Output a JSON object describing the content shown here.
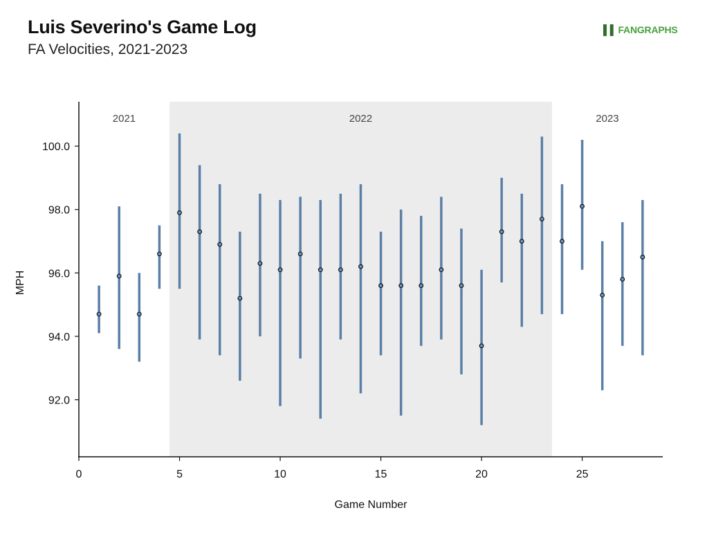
{
  "header": {
    "title": "Luis Severino's Game Log",
    "subtitle": "FA Velocities, 2021-2023",
    "logo_text": "FANGRAPHS"
  },
  "chart_data": {
    "type": "scatter",
    "title": "Luis Severino's Game Log",
    "subtitle": "FA Velocities, 2021-2023",
    "xlabel": "Game Number",
    "ylabel": "MPH",
    "xlim": [
      0,
      29
    ],
    "ylim": [
      90.2,
      101.4
    ],
    "xticks": [
      0,
      5,
      10,
      15,
      20,
      25
    ],
    "xtick_labels": [
      "0",
      "5",
      "10",
      "15",
      "20",
      "25"
    ],
    "yticks": [
      92,
      94,
      96,
      98,
      100
    ],
    "ytick_labels": [
      "92.0",
      "94.0",
      "96.0",
      "98.0",
      "100.0"
    ],
    "grid": false,
    "season_bands": [
      {
        "label": "2021",
        "x_start": 0,
        "x_end": 4.5,
        "shaded": false
      },
      {
        "label": "2022",
        "x_start": 4.5,
        "x_end": 23.5,
        "shaded": true
      },
      {
        "label": "2023",
        "x_start": 23.5,
        "x_end": 29,
        "shaded": false
      }
    ],
    "series": [
      {
        "x": [
          1,
          2,
          3,
          4,
          5,
          6,
          7,
          8,
          9,
          10,
          11,
          12,
          13,
          14,
          15,
          16,
          17,
          18,
          19,
          20,
          21,
          22,
          23,
          24,
          25,
          26,
          27,
          28
        ],
        "mean": [
          94.7,
          95.9,
          94.7,
          96.6,
          97.9,
          97.3,
          96.9,
          95.2,
          96.3,
          96.1,
          96.6,
          96.1,
          96.1,
          96.2,
          95.6,
          95.6,
          95.6,
          96.1,
          95.6,
          93.7,
          97.3,
          97.0,
          97.7,
          97.0,
          98.1,
          95.3,
          95.8,
          96.5
        ],
        "low": [
          94.1,
          93.6,
          93.2,
          95.5,
          95.5,
          93.9,
          93.4,
          92.6,
          94.0,
          91.8,
          93.3,
          91.4,
          93.9,
          92.2,
          93.4,
          91.5,
          93.7,
          93.9,
          92.8,
          91.2,
          95.7,
          94.3,
          94.7,
          94.7,
          96.1,
          92.3,
          93.7,
          93.4
        ],
        "high": [
          95.6,
          98.1,
          96.0,
          97.5,
          100.4,
          99.4,
          98.8,
          97.3,
          98.5,
          98.3,
          98.4,
          98.3,
          98.5,
          98.8,
          97.3,
          98.0,
          97.8,
          98.4,
          97.4,
          96.1,
          99.0,
          98.5,
          100.3,
          98.8,
          100.2,
          97.0,
          97.6,
          98.3
        ]
      }
    ],
    "colors": {
      "range_bar": "#5b7fa6",
      "point_fill": "#6f96be",
      "point_edge": "#111111",
      "season_shade": "#ececec"
    }
  }
}
